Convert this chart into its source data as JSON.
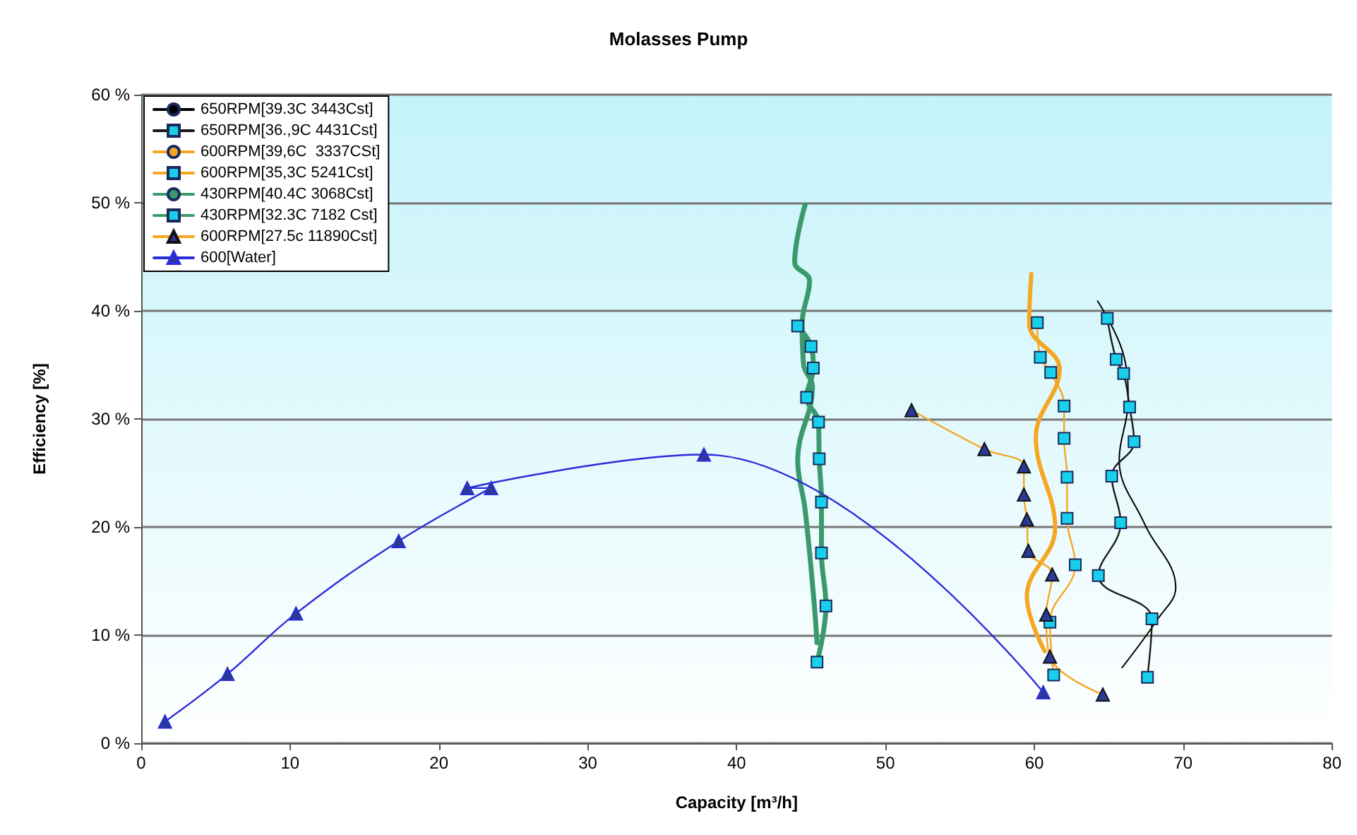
{
  "chart_data": {
    "type": "line",
    "title": "Molasses Pump",
    "xlabel": "Capacity [m³/h]",
    "ylabel": "Efficiency [%]",
    "xlim": [
      0,
      80
    ],
    "xticks": [
      0,
      10,
      20,
      30,
      40,
      50,
      60,
      70,
      80
    ],
    "ylim": [
      0,
      60
    ],
    "yticks": [
      {
        "value": 0,
        "label": "0 %"
      },
      {
        "value": 10,
        "label": "10 %"
      },
      {
        "value": 20,
        "label": "20 %"
      },
      {
        "value": 30,
        "label": "30 %"
      },
      {
        "value": 40,
        "label": "40 %"
      },
      {
        "value": 50,
        "label": "50 %"
      },
      {
        "value": 60,
        "label": "60 %"
      }
    ],
    "grid": "y",
    "legend": "top left",
    "series": [
      {
        "name": "650RPM[39.3C 3443Cst]",
        "color": "#000000",
        "marker": "none",
        "x": [
          64.25,
          66.0,
          66.3,
          65.7,
          67.4,
          69.5,
          68.3,
          65.9
        ],
        "values": [
          40.9,
          35.9,
          31.7,
          26.2,
          20.3,
          14.4,
          11.5,
          7.0
        ]
      },
      {
        "name": "650RPM[36.,9C 4431Cst]",
        "color": "#1a1a1a",
        "marker": "square",
        "x": [
          64.9,
          65.5,
          66.0,
          66.4,
          66.7,
          65.2,
          65.8,
          64.3,
          67.9,
          67.6
        ],
        "values": [
          39.3,
          35.5,
          34.2,
          31.1,
          27.9,
          24.7,
          20.4,
          15.5,
          11.5,
          6.1
        ]
      },
      {
        "name": "600RPM[39,6C  3337CSt]",
        "color": "#f5a623",
        "marker": "none",
        "x": [
          59.8,
          59.65,
          61.7,
          60.1,
          61.4,
          59.5,
          60.7
        ],
        "values": [
          43.4,
          38.8,
          34.6,
          28.3,
          19.9,
          13.6,
          8.5
        ]
      },
      {
        "name": "600RPM[35,3C 5241Cst]",
        "color": "#f5a623",
        "marker": "square",
        "x": [
          60.2,
          60.4,
          61.1,
          62.0,
          62.0,
          62.2,
          62.2,
          62.75,
          61.05,
          61.3
        ],
        "values": [
          38.9,
          35.7,
          34.3,
          31.2,
          28.2,
          24.6,
          20.8,
          16.5,
          11.2,
          6.3
        ]
      },
      {
        "name": "430RPM[40.4C 3068Cst]",
        "color": "#3a9a6e",
        "marker": "none",
        "x": [
          44.6,
          43.9,
          44.9,
          44.4,
          44.5,
          45.1,
          44.1,
          44.6,
          45.2,
          45.4
        ],
        "values": [
          49.8,
          44.5,
          42.8,
          38.8,
          35.0,
          33.0,
          26.2,
          21.6,
          13.1,
          9.3
        ]
      },
      {
        "name": "430RPM[32.3C 7182 Cst]",
        "color": "#3a9a6e",
        "marker": "square",
        "x": [
          44.1,
          45.0,
          45.15,
          44.7,
          45.5,
          45.55,
          45.7,
          45.7,
          46.0,
          45.4
        ],
        "values": [
          38.6,
          36.7,
          34.7,
          32.0,
          29.7,
          26.3,
          22.3,
          17.6,
          12.7,
          7.5
        ]
      },
      {
        "name": "600RPM[27.5c 11890Cst]",
        "color": "#f5a623",
        "marker": "triangle",
        "x": [
          51.75,
          56.65,
          59.3,
          59.3,
          59.5,
          59.6,
          61.2,
          60.8,
          61.05,
          64.6
        ],
        "values": [
          30.8,
          27.2,
          25.6,
          23.0,
          20.7,
          17.8,
          15.6,
          11.9,
          8.0,
          4.5
        ]
      },
      {
        "name": "600[Water]",
        "color": "#2b2bd9",
        "marker": "triangle",
        "x": [
          1.6,
          5.8,
          10.4,
          17.3,
          23.5,
          21.9,
          37.8,
          60.6
        ],
        "values": [
          2.0,
          6.4,
          12.0,
          18.7,
          23.6,
          23.6,
          26.7,
          4.7
        ]
      }
    ]
  }
}
